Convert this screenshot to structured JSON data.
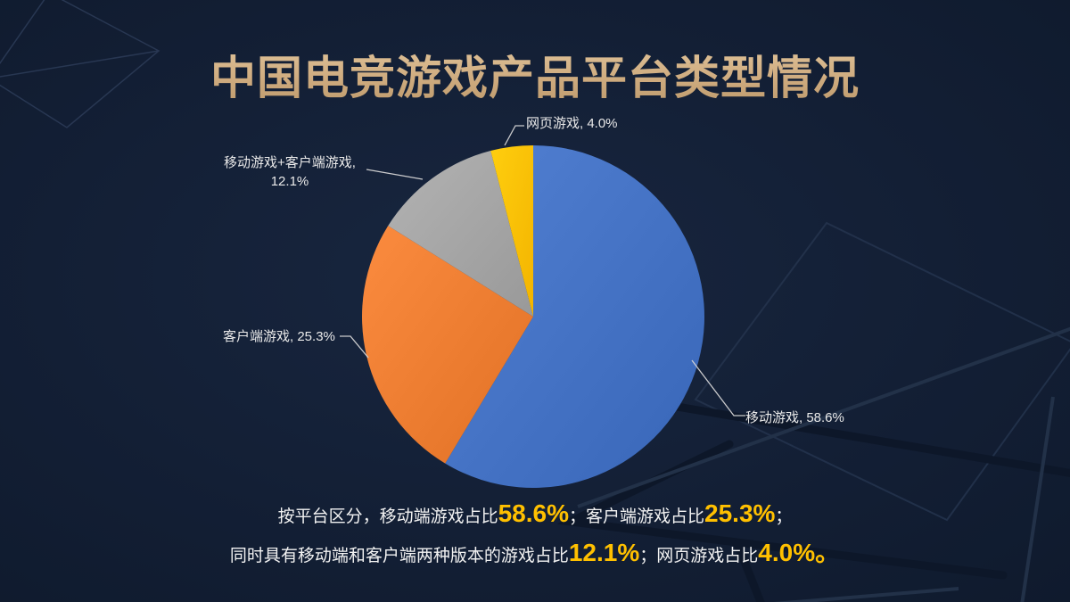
{
  "page": {
    "background": "#121E33"
  },
  "title": {
    "text": "中国电竞游戏产品平台类型情况",
    "color": "#D2AF85"
  },
  "chart_data": {
    "type": "pie",
    "title": "中国电竞游戏产品平台类型情况",
    "categories": [
      "移动游戏",
      "客户端游戏",
      "移动游戏+客户端游戏",
      "网页游戏"
    ],
    "values": [
      58.6,
      25.3,
      12.1,
      4.0
    ],
    "unit": "%",
    "colors": [
      "#4472C4",
      "#ED7D31",
      "#A5A5A5",
      "#FFC000"
    ],
    "start_angle_deg": 0,
    "direction": "clockwise",
    "legend": "none",
    "callouts": [
      {
        "text": "移动游戏, 58.6%"
      },
      {
        "text": "客户端游戏, 25.3%"
      },
      {
        "text": "移动游戏+客户端游戏,\n12.1%"
      },
      {
        "text": "网页游戏, 4.0%"
      }
    ]
  },
  "summary": {
    "highlight_color": "#FFC000",
    "lines": [
      [
        {
          "t": "按平台区分，移动端游戏占比",
          "h": false
        },
        {
          "t": "58.6%",
          "h": true
        },
        {
          "t": "；",
          "h": false
        },
        {
          "t": "客户端游戏占比",
          "h": false
        },
        {
          "t": "25.3%",
          "h": true
        },
        {
          "t": "；",
          "h": false
        }
      ],
      [
        {
          "t": "同时具有移动端和客户端两种版本的游戏占比",
          "h": false
        },
        {
          "t": "12.1%",
          "h": true
        },
        {
          "t": "；",
          "h": false
        },
        {
          "t": "网页游戏占比",
          "h": false
        },
        {
          "t": "4.0%",
          "h": true
        },
        {
          "t": "。",
          "h": true
        }
      ]
    ]
  }
}
